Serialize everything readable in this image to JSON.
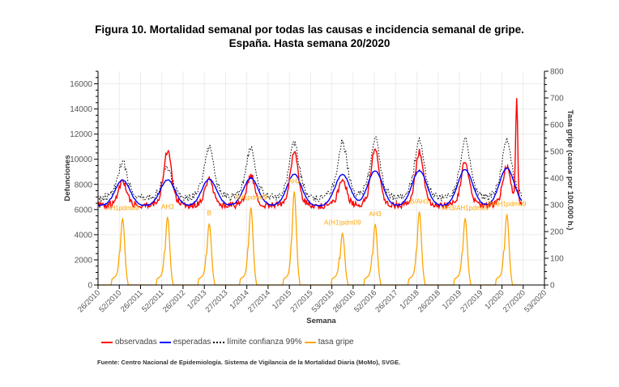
{
  "title_line1": "Figura 10.  Mortalidad semanal por todas las causas e incidencia semanal de gripe.",
  "title_line2": "España. Hasta semana 20/2020",
  "source": "Fuente: Centro Nacional de Epidemiología. Sistema de Vigilancia de la Mortalidad Diaria (MoMo), SVGE.",
  "chart_data": {
    "type": "line",
    "title": "Figura 10. Mortalidad semanal por todas las causas e incidencia semanal de gripe. España. Hasta semana 20/2020",
    "xlabel": "Semana",
    "ylabel": "Defunciones",
    "y2label": "Tasa gripe (casos por 100.000 h.)",
    "ylim": [
      0,
      17000
    ],
    "y2lim": [
      0,
      800
    ],
    "yticks": [
      0,
      2000,
      4000,
      6000,
      8000,
      10000,
      12000,
      14000,
      16000
    ],
    "y2ticks": [
      0,
      100,
      200,
      300,
      400,
      500,
      600,
      700,
      800
    ],
    "xticks": [
      "26/2010",
      "52/2010",
      "26/2011",
      "52/2011",
      "26/2012",
      "1/2013",
      "27/2013",
      "1/2014",
      "27/2014",
      "1/2015",
      "27/2015",
      "53/2015",
      "26/2016",
      "52/2016",
      "26/2017",
      "1/2018",
      "26/2018",
      "1/2019",
      "27/2019",
      "1/2020",
      "27/2020",
      "53/2020"
    ],
    "grid": true,
    "legend_position": "bottom-left",
    "season_peaks": [
      {
        "week": "2/2011",
        "observadas": 8300,
        "esperadas": 8350,
        "limite_99": 9800,
        "tasa_gripe": 250,
        "virus": "AH1pdm09"
      },
      {
        "week": "7/2012",
        "observadas": 10600,
        "esperadas": 8350,
        "limite_99": 9300,
        "tasa_gripe": 255,
        "virus": "AH3"
      },
      {
        "week": "7/2013",
        "observadas": 8400,
        "esperadas": 8400,
        "limite_99": 11000,
        "tasa_gripe": 230,
        "virus": "B"
      },
      {
        "week": "4/2014",
        "observadas": 8700,
        "esperadas": 8500,
        "limite_99": 11000,
        "tasa_gripe": 290,
        "virus": "AH1pdm09"
      },
      {
        "week": "3/2015",
        "observadas": 10500,
        "esperadas": 8800,
        "limite_99": 11400,
        "tasa_gripe": 350,
        "virus": "AH3"
      },
      {
        "week": "8/2016",
        "observadas": 8400,
        "esperadas": 8800,
        "limite_99": 11400,
        "tasa_gripe": 195,
        "virus": "A(H1)pdm09"
      },
      {
        "week": "1/2017",
        "observadas": 11000,
        "esperadas": 9100,
        "limite_99": 11800,
        "tasa_gripe": 228,
        "virus": "AH3"
      },
      {
        "week": "2/2018",
        "observadas": 10600,
        "esperadas": 9100,
        "limite_99": 11500,
        "tasa_gripe": 275,
        "virus": "B/AH3"
      },
      {
        "week": "5/2019",
        "observadas": 9900,
        "esperadas": 9200,
        "limite_99": 11700,
        "tasa_gripe": 250,
        "virus": "AH3/AH1pdm09"
      },
      {
        "week": "5/2020",
        "observadas": 9400,
        "esperadas": 9300,
        "limite_99": 11600,
        "tasa_gripe": 265,
        "virus": "B/AH1pdm09"
      },
      {
        "week": "14/2020",
        "observadas": 16200,
        "esperadas": 8000,
        "limite_99": 8500,
        "tasa_gripe": 0,
        "virus": ""
      }
    ],
    "last_values_week_20_2020": {
      "observadas": 7200,
      "esperadas": 6800,
      "limite_99": 7600
    },
    "baseline_trough": {
      "observadas": 6300,
      "esperadas": 6300,
      "limite_99": 6900,
      "tasa_gripe": 10
    },
    "series": [
      {
        "name": "observadas",
        "color": "#ff0000",
        "style": "solid",
        "axis": "left"
      },
      {
        "name": "esperadas",
        "color": "#0000ff",
        "style": "solid",
        "axis": "left"
      },
      {
        "name": "límite confianza 99%",
        "color": "#000000",
        "style": "dotted",
        "axis": "left"
      },
      {
        "name": "tasa gripe",
        "color": "#ffa500",
        "style": "solid",
        "axis": "right"
      }
    ]
  },
  "legend": {
    "items": [
      {
        "label": "observadas",
        "color": "#ff0000"
      },
      {
        "label": "esperadas",
        "color": "#0000ff"
      },
      {
        "label": "límite confianza 99%",
        "color": "#000000"
      },
      {
        "label": "tasa gripe",
        "color": "#ffa500"
      }
    ]
  }
}
